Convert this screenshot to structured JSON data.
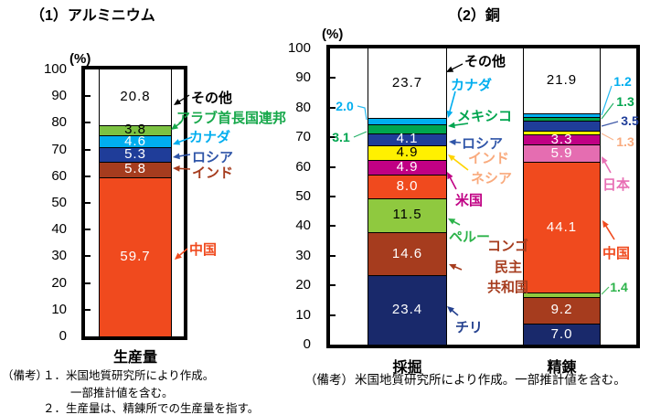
{
  "page": {
    "background": "#FFFFFF"
  },
  "chart_data": [
    {
      "type": "bar",
      "stacked": true,
      "title": "（1）アルミニウム",
      "unit_label": "(%)",
      "xlabel": "",
      "ylabel": "(%)",
      "ylim": [
        0,
        100
      ],
      "ytick_step": 10,
      "grid": false,
      "legend_position": "right-annotations",
      "categories": [
        "生産量"
      ],
      "series": [
        {
          "name": "中国",
          "color": "#F04A1E",
          "values": [
            59.7
          ],
          "value_labels": [
            "inside"
          ],
          "value_text_color": "#FFFFFF"
        },
        {
          "name": "インド",
          "color": "#A63C1E",
          "values": [
            5.8
          ],
          "value_labels": [
            "inside"
          ],
          "value_text_color": "#FFFFFF"
        },
        {
          "name": "ロシア",
          "color": "#1F3D99",
          "values": [
            5.3
          ],
          "value_labels": [
            "inside"
          ],
          "value_text_color": "#FFFFFF"
        },
        {
          "name": "カナダ",
          "color": "#00AEEF",
          "values": [
            4.6
          ],
          "value_labels": [
            "inside"
          ],
          "value_text_color": "#FFFFFF"
        },
        {
          "name": "アラブ首長国連邦",
          "color": "#7CC242",
          "values": [
            3.8
          ],
          "value_labels": [
            "inside"
          ],
          "value_text_color": "#000000"
        },
        {
          "name": "その他",
          "color": "#FFFFFF",
          "values": [
            20.8
          ],
          "value_labels": [
            "inside"
          ],
          "value_text_color": "#000000"
        }
      ],
      "annotations": [
        {
          "id": "sonota",
          "text": "その他",
          "color": "#000000"
        },
        {
          "id": "uae",
          "text": "アラブ首長国連邦",
          "color": "#17A84B"
        },
        {
          "id": "canada",
          "text": "カナダ",
          "color": "#00AEEF"
        },
        {
          "id": "russia",
          "text": "ロシア",
          "color": "#2F55A8"
        },
        {
          "id": "india",
          "text": "インド",
          "color": "#A63C1E"
        },
        {
          "id": "china",
          "text": "中国",
          "color": "#F04A1E"
        }
      ],
      "notes": {
        "label": "（備考）",
        "lines": [
          "１．米国地質研究所により作成。",
          "一部推計値を含む。",
          "２．生産量は、精錬所での生産量を指す。"
        ]
      }
    },
    {
      "type": "bar",
      "stacked": true,
      "title": "（2）銅",
      "unit_label": "(%)",
      "xlabel": "",
      "ylabel": "(%)",
      "ylim": [
        0,
        100
      ],
      "ytick_step": 10,
      "grid": false,
      "legend_position": "middle-annotations",
      "categories": [
        "採掘",
        "精錬"
      ],
      "series": [
        {
          "name": "チリ",
          "color": "#19296B",
          "values": [
            23.4,
            7.0
          ],
          "value_labels": [
            "inside",
            "inside"
          ],
          "value_text_color": "#FFFFFF"
        },
        {
          "name": "コンゴ民主共和国",
          "color": "#A63C1E",
          "values": [
            14.6,
            9.2
          ],
          "value_labels": [
            "inside",
            "inside"
          ],
          "value_text_color": "#FFFFFF"
        },
        {
          "name": "ペルー",
          "color": "#8FC93F",
          "values": [
            11.5,
            1.4
          ],
          "value_labels": [
            "inside",
            "right"
          ],
          "value_text_color": "#000000",
          "outside_color": "#2CB34A"
        },
        {
          "name": "中国",
          "color": "#F04A1E",
          "values": [
            8.0,
            44.1
          ],
          "value_labels": [
            "inside",
            "inside"
          ],
          "value_text_color": "#FFFFFF"
        },
        {
          "name": "日本",
          "color": "#E56DB1",
          "values": [
            0,
            5.9
          ],
          "value_labels": [
            "none",
            "inside"
          ],
          "value_text_color": "#FFFFFF"
        },
        {
          "name": "米国",
          "color": "#C00084",
          "values": [
            4.9,
            3.3
          ],
          "value_labels": [
            "inside",
            "inside"
          ],
          "value_text_color": "#FFFFFF"
        },
        {
          "name": "インドネシア",
          "color": "#FFF000",
          "values": [
            4.9,
            1.3
          ],
          "value_labels": [
            "inside",
            "right"
          ],
          "value_text_color": "#000000",
          "outside_color": "#F9AA7D"
        },
        {
          "name": "ロシア",
          "color": "#1F3D99",
          "values": [
            4.1,
            3.5
          ],
          "value_labels": [
            "inside",
            "right"
          ],
          "value_text_color": "#FFFFFF",
          "outside_color": "#1F3D99"
        },
        {
          "name": "メキシコ",
          "color": "#00A54F",
          "values": [
            3.1,
            1.3
          ],
          "value_labels": [
            "left",
            "right"
          ],
          "value_text_color": "#FFFFFF",
          "outside_color": "#00A54F"
        },
        {
          "name": "カナダ",
          "color": "#00AEEF",
          "values": [
            2.0,
            1.2
          ],
          "value_labels": [
            "left",
            "right"
          ],
          "value_text_color": "#FFFFFF",
          "outside_color": "#00AEEF"
        },
        {
          "name": "その他",
          "color": "#FFFFFF",
          "values": [
            23.7,
            21.9
          ],
          "value_labels": [
            "inside",
            "inside"
          ],
          "value_text_color": "#000000"
        }
      ],
      "annotations": [
        {
          "id": "sonota",
          "text": "その他",
          "color": "#000000"
        },
        {
          "id": "canada",
          "text": "カナダ",
          "color": "#00AEEF"
        },
        {
          "id": "mexico",
          "text": "メキシコ",
          "color": "#00A54F"
        },
        {
          "id": "russia",
          "text": "ロシア",
          "color": "#2F55A8"
        },
        {
          "id": "indonesia",
          "text": "インド\nネシア",
          "color": "#F9AA7D",
          "arrow_color": "#FFD400"
        },
        {
          "id": "usa",
          "text": "米国",
          "color": "#C00084"
        },
        {
          "id": "peru",
          "text": "ペルー",
          "color": "#2CB34A"
        },
        {
          "id": "congo",
          "text": "コンゴ\n民主\n共和国",
          "color": "#A63C1E"
        },
        {
          "id": "chile",
          "text": "チリ",
          "color": "#24418F"
        },
        {
          "id": "japan",
          "text": "日本",
          "color": "#E870B5"
        },
        {
          "id": "china",
          "text": "中国",
          "color": "#F04A1E"
        }
      ],
      "notes": {
        "label": "（備考）",
        "lines": [
          "米国地質研究所により作成。一部推計値を含む。"
        ]
      }
    }
  ]
}
